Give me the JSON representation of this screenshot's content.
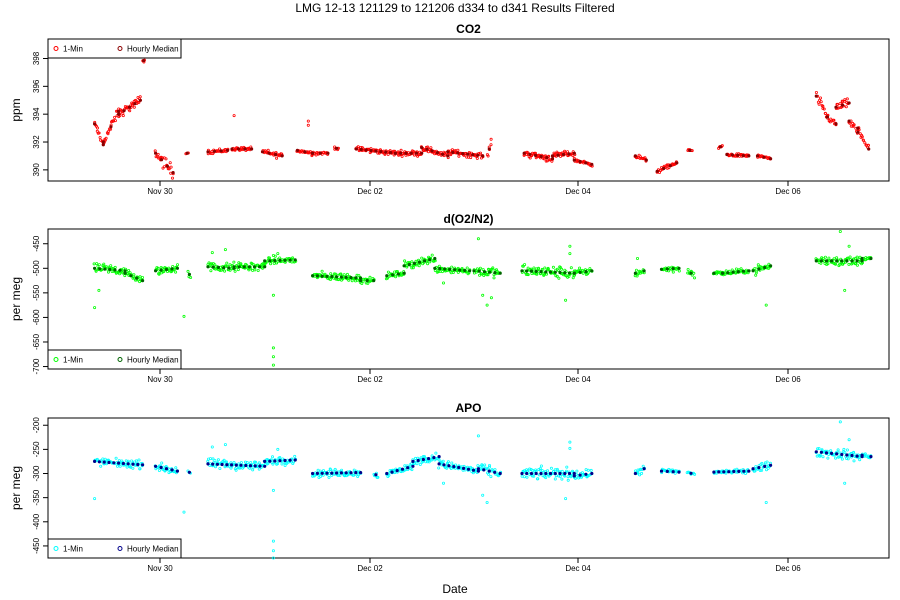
{
  "figure": {
    "title": "LMG   12-13    121129 to 121206    d334 to d341   Results Filtered",
    "xlabel": "Date",
    "x_ticks": [
      "Nov 30",
      "Dec 02",
      "Dec 04",
      "Dec 06"
    ]
  },
  "chart_data": [
    {
      "type": "scatter",
      "title": "CO2",
      "ylabel": "ppm",
      "ylim": [
        389.2,
        399.4
      ],
      "yticks": [
        390,
        392,
        394,
        396,
        398
      ],
      "legend_position": "top-left",
      "x_domain": [
        "2012-11-29",
        "2012-12-07"
      ],
      "series": [
        {
          "name": "1-Min",
          "color": "#ff0000",
          "marker": "dot"
        },
        {
          "name": "Hourly Median",
          "color": "#8b0000",
          "marker": "circle"
        }
      ],
      "segments": [
        {
          "start": "2012-11-29T09:00",
          "end": "2012-11-29T11:00",
          "y0": 393.3,
          "y1": 391.8,
          "noise": 0.25
        },
        {
          "start": "2012-11-29T11:00",
          "end": "2012-11-29T14:30",
          "y0": 392.0,
          "y1": 394.2,
          "noise": 0.3
        },
        {
          "start": "2012-11-29T14:30",
          "end": "2012-11-29T19:30",
          "y0": 394.0,
          "y1": 395.0,
          "noise": 0.3
        },
        {
          "start": "2012-11-29T20:00",
          "end": "2012-11-29T20:30",
          "y0": 397.8,
          "y1": 397.9,
          "noise": 0.1
        },
        {
          "start": "2012-11-29T23:00",
          "end": "2012-11-30T03:00",
          "y0": 391.2,
          "y1": 389.8,
          "noise": 0.45
        },
        {
          "start": "2012-11-30T06:00",
          "end": "2012-11-30T06:30",
          "y0": 391.2,
          "y1": 391.2,
          "noise": 0.05
        },
        {
          "start": "2012-11-30T11:00",
          "end": "2012-11-30T15:30",
          "y0": 391.3,
          "y1": 391.4,
          "noise": 0.15
        },
        {
          "start": "2012-11-30T16:30",
          "end": "2012-11-30T21:00",
          "y0": 391.5,
          "y1": 391.5,
          "noise": 0.12
        },
        {
          "start": "2012-11-30T23:30",
          "end": "2012-12-01T04:00",
          "y0": 391.3,
          "y1": 391.0,
          "noise": 0.2
        },
        {
          "start": "2012-12-01T07:30",
          "end": "2012-12-01T11:00",
          "y0": 391.4,
          "y1": 391.2,
          "noise": 0.15
        },
        {
          "start": "2012-12-01T11:00",
          "end": "2012-12-01T14:30",
          "y0": 391.2,
          "y1": 391.2,
          "noise": 0.12
        },
        {
          "start": "2012-12-01T16:00",
          "end": "2012-12-01T17:00",
          "y0": 391.6,
          "y1": 391.5,
          "noise": 0.1
        },
        {
          "start": "2012-12-01T21:00",
          "end": "2012-12-02T06:00",
          "y0": 391.5,
          "y1": 391.2,
          "noise": 0.18
        },
        {
          "start": "2012-12-02T06:00",
          "end": "2012-12-02T12:00",
          "y0": 391.2,
          "y1": 391.2,
          "noise": 0.18
        },
        {
          "start": "2012-12-02T12:00",
          "end": "2012-12-02T18:00",
          "y0": 391.6,
          "y1": 391.0,
          "noise": 0.2
        },
        {
          "start": "2012-12-02T18:00",
          "end": "2012-12-03T02:00",
          "y0": 391.3,
          "y1": 391.0,
          "noise": 0.2
        },
        {
          "start": "2012-12-03T03:00",
          "end": "2012-12-03T04:00",
          "y0": 391.0,
          "y1": 392.0,
          "noise": 0.2
        },
        {
          "start": "2012-12-03T11:30",
          "end": "2012-12-03T18:00",
          "y0": 391.2,
          "y1": 390.8,
          "noise": 0.25
        },
        {
          "start": "2012-12-03T18:00",
          "end": "2012-12-03T23:00",
          "y0": 391.0,
          "y1": 391.2,
          "noise": 0.2
        },
        {
          "start": "2012-12-03T23:00",
          "end": "2012-12-04T03:00",
          "y0": 390.7,
          "y1": 390.4,
          "noise": 0.12
        },
        {
          "start": "2012-12-04T13:00",
          "end": "2012-12-04T15:30",
          "y0": 391.0,
          "y1": 390.7,
          "noise": 0.15
        },
        {
          "start": "2012-12-04T18:00",
          "end": "2012-12-04T22:30",
          "y0": 389.9,
          "y1": 390.5,
          "noise": 0.15
        },
        {
          "start": "2012-12-05T01:00",
          "end": "2012-12-05T02:00",
          "y0": 391.4,
          "y1": 391.4,
          "noise": 0.05
        },
        {
          "start": "2012-12-05T08:00",
          "end": "2012-12-05T09:00",
          "y0": 391.6,
          "y1": 391.7,
          "noise": 0.1
        },
        {
          "start": "2012-12-05T10:00",
          "end": "2012-12-05T15:00",
          "y0": 391.1,
          "y1": 391.0,
          "noise": 0.12
        },
        {
          "start": "2012-12-05T17:00",
          "end": "2012-12-05T20:00",
          "y0": 391.0,
          "y1": 390.8,
          "noise": 0.1
        },
        {
          "start": "2012-12-06T06:30",
          "end": "2012-12-06T09:00",
          "y0": 395.3,
          "y1": 393.8,
          "noise": 0.35
        },
        {
          "start": "2012-12-06T09:00",
          "end": "2012-12-06T11:00",
          "y0": 393.8,
          "y1": 393.3,
          "noise": 0.25
        },
        {
          "start": "2012-12-06T11:00",
          "end": "2012-12-06T14:00",
          "y0": 394.5,
          "y1": 394.8,
          "noise": 0.3
        },
        {
          "start": "2012-12-06T14:00",
          "end": "2012-12-06T16:00",
          "y0": 393.5,
          "y1": 392.7,
          "noise": 0.3
        },
        {
          "start": "2012-12-06T16:00",
          "end": "2012-12-06T18:30",
          "y0": 393.0,
          "y1": 391.5,
          "noise": 0.4
        }
      ],
      "outliers": [
        {
          "x": "2012-11-30T17:00",
          "y": 393.9
        },
        {
          "x": "2012-12-01T10:00",
          "y": 393.5
        },
        {
          "x": "2012-12-01T10:00",
          "y": 393.2
        }
      ]
    },
    {
      "type": "scatter",
      "title": "d(O2/N2)",
      "ylabel": "per meg",
      "ylim": [
        -705,
        -420
      ],
      "yticks": [
        -450,
        -500,
        -550,
        -600,
        -650,
        -700
      ],
      "legend_position": "bottom-left",
      "x_domain": [
        "2012-11-29",
        "2012-12-07"
      ],
      "series": [
        {
          "name": "1-Min",
          "color": "#00ff00",
          "marker": "dot"
        },
        {
          "name": "Hourly Median",
          "color": "#006400",
          "marker": "circle"
        }
      ],
      "segments": [
        {
          "start": "2012-11-29T09:00",
          "end": "2012-11-29T16:00",
          "y0": -500,
          "y1": -505,
          "noise": 10
        },
        {
          "start": "2012-11-29T16:00",
          "end": "2012-11-29T20:00",
          "y0": -510,
          "y1": -525,
          "noise": 8
        },
        {
          "start": "2012-11-29T23:00",
          "end": "2012-11-30T04:00",
          "y0": -505,
          "y1": -500,
          "noise": 9
        },
        {
          "start": "2012-11-30T06:30",
          "end": "2012-11-30T07:00",
          "y0": -510,
          "y1": -515,
          "noise": 5
        },
        {
          "start": "2012-11-30T11:00",
          "end": "2012-11-30T17:00",
          "y0": -497,
          "y1": -500,
          "noise": 10
        },
        {
          "start": "2012-11-30T17:00",
          "end": "2012-12-01T00:00",
          "y0": -497,
          "y1": -497,
          "noise": 9
        },
        {
          "start": "2012-12-01T00:00",
          "end": "2012-12-01T07:00",
          "y0": -485,
          "y1": -483,
          "noise": 8
        },
        {
          "start": "2012-12-01T11:00",
          "end": "2012-12-01T22:00",
          "y0": -515,
          "y1": -520,
          "noise": 8
        },
        {
          "start": "2012-12-01T22:00",
          "end": "2012-12-02T01:00",
          "y0": -525,
          "y1": -525,
          "noise": 6
        },
        {
          "start": "2012-12-02T04:00",
          "end": "2012-12-02T08:00",
          "y0": -515,
          "y1": -510,
          "noise": 6
        },
        {
          "start": "2012-12-02T08:00",
          "end": "2012-12-02T15:00",
          "y0": -495,
          "y1": -480,
          "noise": 9
        },
        {
          "start": "2012-12-02T15:00",
          "end": "2012-12-02T23:00",
          "y0": -500,
          "y1": -505,
          "noise": 8
        },
        {
          "start": "2012-12-03T00:00",
          "end": "2012-12-03T06:00",
          "y0": -505,
          "y1": -510,
          "noise": 10
        },
        {
          "start": "2012-12-03T11:00",
          "end": "2012-12-03T23:00",
          "y0": -505,
          "y1": -510,
          "noise": 12
        },
        {
          "start": "2012-12-03T23:00",
          "end": "2012-12-04T03:00",
          "y0": -510,
          "y1": -505,
          "noise": 8
        },
        {
          "start": "2012-12-04T13:00",
          "end": "2012-12-04T15:00",
          "y0": -510,
          "y1": -505,
          "noise": 8
        },
        {
          "start": "2012-12-04T19:00",
          "end": "2012-12-04T23:00",
          "y0": -502,
          "y1": -500,
          "noise": 6
        },
        {
          "start": "2012-12-05T01:00",
          "end": "2012-12-05T02:30",
          "y0": -505,
          "y1": -515,
          "noise": 6
        },
        {
          "start": "2012-12-05T07:00",
          "end": "2012-12-05T09:00",
          "y0": -510,
          "y1": -510,
          "noise": 4
        },
        {
          "start": "2012-12-05T09:00",
          "end": "2012-12-05T15:00",
          "y0": -510,
          "y1": -505,
          "noise": 5
        },
        {
          "start": "2012-12-05T16:00",
          "end": "2012-12-05T20:00",
          "y0": -505,
          "y1": -495,
          "noise": 8
        },
        {
          "start": "2012-12-06T06:30",
          "end": "2012-12-06T17:00",
          "y0": -485,
          "y1": -485,
          "noise": 10
        },
        {
          "start": "2012-12-06T17:00",
          "end": "2012-12-06T19:00",
          "y0": -480,
          "y1": -480,
          "noise": 4
        }
      ],
      "outliers": [
        {
          "x": "2012-11-29T09:00",
          "y": -580
        },
        {
          "x": "2012-11-29T10:00",
          "y": -545
        },
        {
          "x": "2012-11-30T05:30",
          "y": -598
        },
        {
          "x": "2012-11-30T12:00",
          "y": -468
        },
        {
          "x": "2012-11-30T15:00",
          "y": -462
        },
        {
          "x": "2012-12-01T02:00",
          "y": -662
        },
        {
          "x": "2012-12-01T02:00",
          "y": -680
        },
        {
          "x": "2012-12-01T02:00",
          "y": -697
        },
        {
          "x": "2012-12-01T02:00",
          "y": -555
        },
        {
          "x": "2012-12-01T03:00",
          "y": -470
        },
        {
          "x": "2012-12-02T17:00",
          "y": -530
        },
        {
          "x": "2012-12-03T02:00",
          "y": -555
        },
        {
          "x": "2012-12-03T03:00",
          "y": -575
        },
        {
          "x": "2012-12-03T04:00",
          "y": -560
        },
        {
          "x": "2012-12-03T01:00",
          "y": -440
        },
        {
          "x": "2012-12-03T22:00",
          "y": -455
        },
        {
          "x": "2012-12-03T22:00",
          "y": -470
        },
        {
          "x": "2012-12-03T21:00",
          "y": -565
        },
        {
          "x": "2012-12-04T13:30",
          "y": -480
        },
        {
          "x": "2012-12-05T19:00",
          "y": -575
        },
        {
          "x": "2012-12-06T12:00",
          "y": -425
        },
        {
          "x": "2012-12-06T14:00",
          "y": -455
        },
        {
          "x": "2012-12-06T13:00",
          "y": -545
        }
      ]
    },
    {
      "type": "scatter",
      "title": "APO",
      "ylabel": "per meg",
      "ylim": [
        -475,
        -185
      ],
      "yticks": [
        -200,
        -250,
        -300,
        -350,
        -400,
        -450
      ],
      "legend_position": "bottom-left",
      "x_domain": [
        "2012-11-29",
        "2012-12-07"
      ],
      "series": [
        {
          "name": "1-Min",
          "color": "#00ffff",
          "marker": "dot"
        },
        {
          "name": "Hourly Median",
          "color": "#00008b",
          "marker": "circle"
        }
      ],
      "segments": [
        {
          "start": "2012-11-29T09:00",
          "end": "2012-11-29T20:00",
          "y0": -275,
          "y1": -282,
          "noise": 8
        },
        {
          "start": "2012-11-29T23:00",
          "end": "2012-11-30T04:00",
          "y0": -285,
          "y1": -295,
          "noise": 8
        },
        {
          "start": "2012-11-30T06:30",
          "end": "2012-11-30T07:00",
          "y0": -295,
          "y1": -300,
          "noise": 5
        },
        {
          "start": "2012-11-30T11:00",
          "end": "2012-12-01T00:00",
          "y0": -280,
          "y1": -285,
          "noise": 10
        },
        {
          "start": "2012-12-01T00:00",
          "end": "2012-12-01T07:00",
          "y0": -275,
          "y1": -272,
          "noise": 8
        },
        {
          "start": "2012-12-01T11:00",
          "end": "2012-12-01T22:00",
          "y0": -300,
          "y1": -298,
          "noise": 8
        },
        {
          "start": "2012-12-02T01:00",
          "end": "2012-12-02T02:00",
          "y0": -300,
          "y1": -305,
          "noise": 5
        },
        {
          "start": "2012-12-02T04:00",
          "end": "2012-12-02T10:00",
          "y0": -300,
          "y1": -285,
          "noise": 8
        },
        {
          "start": "2012-12-02T10:00",
          "end": "2012-12-02T16:00",
          "y0": -275,
          "y1": -265,
          "noise": 8
        },
        {
          "start": "2012-12-02T16:00",
          "end": "2012-12-03T01:00",
          "y0": -280,
          "y1": -295,
          "noise": 8
        },
        {
          "start": "2012-12-03T01:00",
          "end": "2012-12-03T06:00",
          "y0": -290,
          "y1": -300,
          "noise": 10
        },
        {
          "start": "2012-12-03T11:00",
          "end": "2012-12-03T23:00",
          "y0": -300,
          "y1": -300,
          "noise": 12
        },
        {
          "start": "2012-12-03T23:00",
          "end": "2012-12-04T03:00",
          "y0": -305,
          "y1": -300,
          "noise": 8
        },
        {
          "start": "2012-12-04T13:00",
          "end": "2012-12-04T15:00",
          "y0": -300,
          "y1": -290,
          "noise": 8
        },
        {
          "start": "2012-12-04T19:00",
          "end": "2012-12-04T23:00",
          "y0": -295,
          "y1": -297,
          "noise": 5
        },
        {
          "start": "2012-12-05T01:00",
          "end": "2012-12-05T02:30",
          "y0": -297,
          "y1": -302,
          "noise": 4
        },
        {
          "start": "2012-12-05T07:00",
          "end": "2012-12-05T15:00",
          "y0": -297,
          "y1": -295,
          "noise": 4
        },
        {
          "start": "2012-12-05T16:00",
          "end": "2012-12-05T20:00",
          "y0": -290,
          "y1": -283,
          "noise": 8
        },
        {
          "start": "2012-12-06T06:30",
          "end": "2012-12-06T17:00",
          "y0": -255,
          "y1": -265,
          "noise": 10
        },
        {
          "start": "2012-12-06T17:00",
          "end": "2012-12-06T19:00",
          "y0": -262,
          "y1": -265,
          "noise": 4
        }
      ],
      "outliers": [
        {
          "x": "2012-11-29T09:00",
          "y": -352
        },
        {
          "x": "2012-11-30T05:30",
          "y": -380
        },
        {
          "x": "2012-11-30T12:00",
          "y": -245
        },
        {
          "x": "2012-11-30T15:00",
          "y": -240
        },
        {
          "x": "2012-12-01T02:00",
          "y": -440
        },
        {
          "x": "2012-12-01T02:00",
          "y": -460
        },
        {
          "x": "2012-12-01T02:00",
          "y": -475
        },
        {
          "x": "2012-12-01T02:00",
          "y": -335
        },
        {
          "x": "2012-12-01T03:00",
          "y": -250
        },
        {
          "x": "2012-12-02T17:00",
          "y": -320
        },
        {
          "x": "2012-12-03T02:00",
          "y": -345
        },
        {
          "x": "2012-12-03T03:00",
          "y": -360
        },
        {
          "x": "2012-12-03T01:00",
          "y": -222
        },
        {
          "x": "2012-12-03T22:00",
          "y": -235
        },
        {
          "x": "2012-12-03T22:00",
          "y": -248
        },
        {
          "x": "2012-12-03T21:00",
          "y": -352
        },
        {
          "x": "2012-12-05T19:00",
          "y": -360
        },
        {
          "x": "2012-12-06T12:00",
          "y": -193
        },
        {
          "x": "2012-12-06T14:00",
          "y": -230
        },
        {
          "x": "2012-12-06T13:00",
          "y": -320
        }
      ]
    }
  ]
}
